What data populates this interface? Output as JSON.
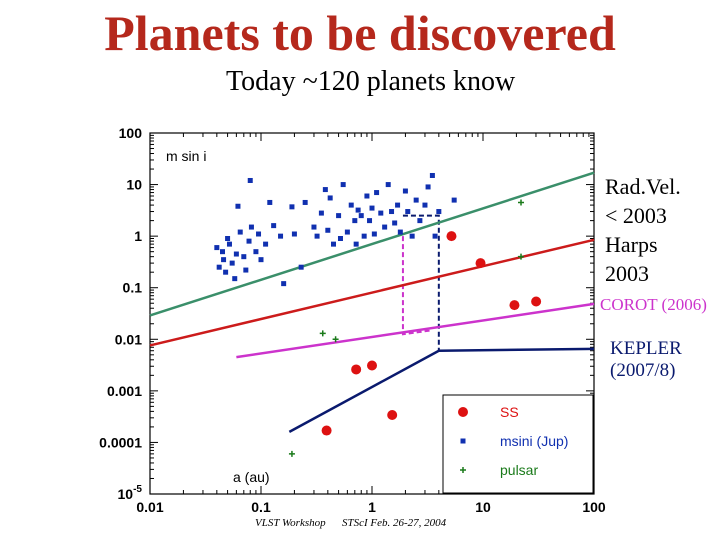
{
  "title": "Planets to be discovered",
  "subtitle": "Today ~120 planets know",
  "annotations": {
    "radvel": [
      "Rad.Vel.",
      "< 2003"
    ],
    "harps": [
      "Harps",
      "2003"
    ],
    "corot": "COROT (2006)",
    "kepler": [
      "KEPLER",
      "(2007/8)"
    ]
  },
  "footer": {
    "left": "VLST Workshop",
    "right": "STScI  Feb. 26-27, 2004"
  },
  "colors": {
    "title": "#b5281c",
    "radvel": "#3a8f6a",
    "harps": "#cc1b1b",
    "corot": "#cc33cc",
    "kepler": "#0a1a6e",
    "ss": "#dd1111",
    "msini": "#1030b0",
    "pulsar": "#1a7a1a"
  },
  "chart_data": {
    "type": "scatter",
    "xscale": "log",
    "yscale": "log",
    "xlim": [
      0.01,
      100
    ],
    "ylim": [
      1e-05,
      100
    ],
    "xlabel": "a (au)",
    "ylabel": "m sin i",
    "xticks": [
      {
        "v": 0.01,
        "label": "0.01"
      },
      {
        "v": 0.1,
        "label": "0.1"
      },
      {
        "v": 1,
        "label": "1"
      },
      {
        "v": 10,
        "label": "10"
      },
      {
        "v": 100,
        "label": "100"
      }
    ],
    "yticks": [
      {
        "v": 100,
        "label": "100"
      },
      {
        "v": 10,
        "label": "10"
      },
      {
        "v": 1,
        "label": "1"
      },
      {
        "v": 0.1,
        "label": "0.1"
      },
      {
        "v": 0.01,
        "label": "0.01"
      },
      {
        "v": 0.001,
        "label": "0.001"
      },
      {
        "v": 0.0001,
        "label": "0.0001"
      }
    ],
    "ymin_label": {
      "base": "10",
      "exp": "-5"
    },
    "legend": {
      "position": "bottom-right",
      "items": [
        {
          "label": "SS",
          "series": "SS"
        },
        {
          "label": "msini (Jup)",
          "series": "msini"
        },
        {
          "label": "pulsar",
          "series": "pulsar"
        }
      ]
    },
    "series": [
      {
        "name": "SS",
        "marker": "circle",
        "points": [
          [
            0.39,
            0.00017
          ],
          [
            0.72,
            0.0026
          ],
          [
            1.0,
            0.0031
          ],
          [
            1.52,
            0.00034
          ],
          [
            5.2,
            1.0
          ],
          [
            9.5,
            0.3
          ],
          [
            19.2,
            0.046
          ],
          [
            30.1,
            0.054
          ]
        ]
      },
      {
        "name": "msini",
        "marker": "square",
        "points": [
          [
            0.04,
            0.6
          ],
          [
            0.042,
            0.25
          ],
          [
            0.045,
            0.5
          ],
          [
            0.046,
            0.35
          ],
          [
            0.05,
            0.9
          ],
          [
            0.048,
            0.2
          ],
          [
            0.052,
            0.7
          ],
          [
            0.055,
            0.3
          ],
          [
            0.058,
            0.15
          ],
          [
            0.06,
            0.45
          ],
          [
            0.062,
            3.8
          ],
          [
            0.065,
            1.2
          ],
          [
            0.07,
            0.4
          ],
          [
            0.073,
            0.22
          ],
          [
            0.078,
            0.8
          ],
          [
            0.08,
            12
          ],
          [
            0.082,
            1.5
          ],
          [
            0.09,
            0.5
          ],
          [
            0.095,
            1.1
          ],
          [
            0.1,
            0.35
          ],
          [
            0.11,
            0.7
          ],
          [
            0.12,
            4.5
          ],
          [
            0.13,
            1.6
          ],
          [
            0.15,
            1.0
          ],
          [
            0.16,
            0.12
          ],
          [
            0.19,
            3.7
          ],
          [
            0.2,
            1.1
          ],
          [
            0.23,
            0.25
          ],
          [
            0.25,
            4.5
          ],
          [
            0.3,
            1.5
          ],
          [
            0.32,
            1.0
          ],
          [
            0.35,
            2.8
          ],
          [
            0.38,
            8.0
          ],
          [
            0.4,
            1.3
          ],
          [
            0.42,
            5.5
          ],
          [
            0.45,
            0.7
          ],
          [
            0.5,
            2.5
          ],
          [
            0.52,
            0.9
          ],
          [
            0.55,
            10.0
          ],
          [
            0.6,
            1.2
          ],
          [
            0.65,
            4.0
          ],
          [
            0.7,
            2.0
          ],
          [
            0.72,
            0.7
          ],
          [
            0.75,
            3.2
          ],
          [
            0.8,
            2.5
          ],
          [
            0.85,
            1.0
          ],
          [
            0.9,
            6.0
          ],
          [
            0.95,
            2.0
          ],
          [
            1.0,
            3.5
          ],
          [
            1.05,
            1.1
          ],
          [
            1.1,
            7.0
          ],
          [
            1.2,
            2.8
          ],
          [
            1.3,
            1.5
          ],
          [
            1.4,
            10.0
          ],
          [
            1.5,
            3.0
          ],
          [
            1.6,
            1.8
          ],
          [
            1.7,
            4.0
          ],
          [
            1.8,
            1.2
          ],
          [
            2.0,
            7.5
          ],
          [
            2.1,
            3.0
          ],
          [
            2.3,
            1.0
          ],
          [
            2.5,
            5.0
          ],
          [
            2.7,
            2.0
          ],
          [
            3.0,
            4.0
          ],
          [
            3.2,
            9.0
          ],
          [
            3.5,
            15.0
          ],
          [
            3.7,
            1.0
          ],
          [
            4.0,
            3.0
          ],
          [
            5.5,
            5.0
          ]
        ]
      },
      {
        "name": "pulsar",
        "marker": "plus",
        "points": [
          [
            0.19,
            6e-05
          ],
          [
            0.36,
            0.013
          ],
          [
            0.47,
            0.01
          ],
          [
            22,
            4.5
          ],
          [
            22,
            0.4
          ]
        ]
      }
    ],
    "lines": [
      {
        "name": "Rad.Vel. < 2003",
        "color": "#3a8f6a",
        "points": [
          [
            0.01,
            0.029
          ],
          [
            100,
            17
          ]
        ]
      },
      {
        "name": "Harps 2003",
        "color": "#cc1b1b",
        "points": [
          [
            0.01,
            0.0076
          ],
          [
            100,
            0.85
          ]
        ]
      },
      {
        "name": "COROT (2006)",
        "color": "#cc33cc",
        "points": [
          [
            0.06,
            0.0045
          ],
          [
            100,
            0.0485
          ]
        ]
      },
      {
        "name": "KEPLER (2007/8)",
        "color": "#0a1a6e",
        "points": [
          [
            0.18,
            0.00016
          ],
          [
            4.0,
            0.006
          ],
          [
            100,
            0.0065
          ]
        ]
      }
    ],
    "connectors": [
      {
        "color": "#cc33cc",
        "points": [
          [
            1.9,
            1.0
          ],
          [
            1.9,
            0.0125
          ],
          [
            3.5,
            0.015
          ]
        ]
      },
      {
        "color": "#0a1a6e",
        "points": [
          [
            1.9,
            2.5
          ],
          [
            4.0,
            2.5
          ],
          [
            4.0,
            0.006
          ]
        ]
      }
    ]
  }
}
